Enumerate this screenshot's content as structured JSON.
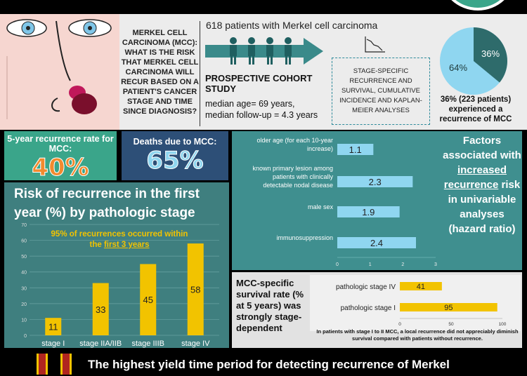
{
  "header": {
    "question_title": "MERKEL CELL CARCINOMA (MCC):",
    "question_body": "WHAT IS THE RISK THAT MERKEL CELL CARCINOMA WILL RECUR BASED ON A PATIENT'S CANCER STAGE AND TIME SINCE DIAGNOSIS?"
  },
  "cohort": {
    "title": "618 patients with Merkel cell carcinoma",
    "study_type": "PROSPECTIVE COHORT STUDY",
    "median_age": "median age= 69 years,",
    "median_followup": "median follow-up = 4.3 years",
    "analyses": "STAGE-SPECIFIC RECURRENCE AND SURVIVAL, CUMULATIVE INCIDENCE AND KAPLAN-MEIER ANALYSES"
  },
  "pie": {
    "slice_a_label": "36%",
    "slice_b_label": "64%",
    "caption": "36% (223 patients) experienced a recurrence of MCC",
    "color_a": "#2e6b6b",
    "color_b": "#8fd6f0"
  },
  "stats": {
    "recurrence_label": "5-year recurrence rate for MCC:",
    "recurrence_value": "40%",
    "deaths_label": "Deaths due to MCC:",
    "deaths_value": "65%"
  },
  "risk": {
    "title": "Risk of recurrence in the first year (%) by pathologic stage",
    "note_prefix": "95% of recurrences occurred within the ",
    "note_highlight": "first 3 years"
  },
  "factors": {
    "text_1": "Factors associated with",
    "text_2": "increased recurrence",
    "text_3": "risk in univariable analyses (hazard ratio)"
  },
  "survival": {
    "label": "MCC-specific survival rate (% at 5 years) was strongly stage-dependent",
    "note": "In patients with stage I to II MCC, a local recurrence did not appreciably diminish survival compared with patients without recurrence."
  },
  "bottom": {
    "text": "The highest yield time period for detecting recurrence of Merkel"
  },
  "chart_data": [
    {
      "type": "bar",
      "title": "Risk of recurrence in the first year (%) by pathologic stage",
      "categories": [
        "stage I",
        "stage IIA/IIB",
        "stage IIIB",
        "stage IV"
      ],
      "values": [
        11,
        33,
        45,
        58
      ],
      "ylim": [
        0,
        70
      ],
      "yticks": [
        0,
        10,
        20,
        30,
        40,
        50,
        60,
        70
      ],
      "bar_color": "#f2c300",
      "grid": true
    },
    {
      "type": "bar",
      "orientation": "horizontal",
      "categories": [
        "older age (for each 10-year increase)",
        "known primary lesion among patients with clinically detectable nodal disease",
        "male sex",
        "immunosuppression"
      ],
      "values": [
        1.1,
        2.3,
        1.9,
        2.4
      ],
      "xlim": [
        0,
        3
      ],
      "xticks": [
        0,
        1,
        2,
        3
      ],
      "bar_color": "#8fd6f0"
    },
    {
      "type": "bar",
      "orientation": "horizontal",
      "categories": [
        "pathologic stage IV",
        "pathologic stage I"
      ],
      "values": [
        41,
        95
      ],
      "xlim": [
        0,
        100
      ],
      "xticks": [
        0,
        50,
        100
      ],
      "bar_color": "#f2c300"
    }
  ]
}
